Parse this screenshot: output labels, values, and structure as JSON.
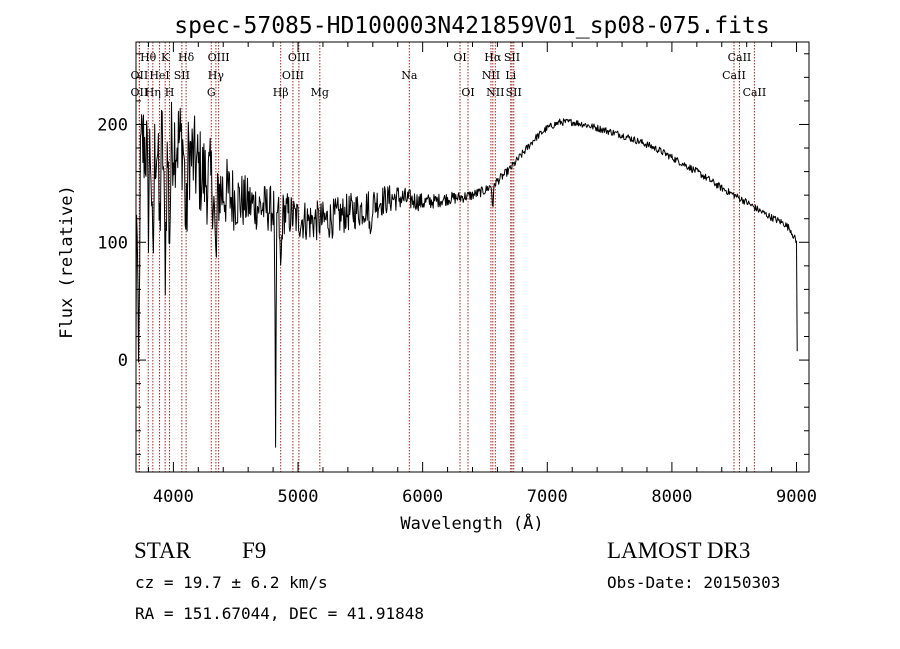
{
  "chart_data": {
    "type": "line",
    "title": "spec-57085-HD100003N421859V01_sp08-075.fits",
    "xlabel": "Wavelength (Å)",
    "ylabel": "Flux (relative)",
    "xlim": [
      3700,
      9100
    ],
    "ylim": [
      -95,
      270
    ],
    "xticks": [
      4000,
      5000,
      6000,
      7000,
      8000,
      9000
    ],
    "xtick_labels": [
      "4000",
      "5000",
      "6000",
      "7000",
      "8000",
      "9000"
    ],
    "yticks": [
      0,
      100,
      200
    ],
    "ytick_labels": [
      "0",
      "100",
      "200"
    ],
    "grid": false,
    "continuum": [
      [
        3700,
        0
      ],
      [
        3705,
        160
      ],
      [
        3750,
        182
      ],
      [
        3800,
        182
      ],
      [
        3850,
        184
      ],
      [
        3900,
        186
      ],
      [
        3950,
        188
      ],
      [
        4000,
        188
      ],
      [
        4050,
        186
      ],
      [
        4100,
        180
      ],
      [
        4150,
        172
      ],
      [
        4200,
        162
      ],
      [
        4250,
        155
      ],
      [
        4300,
        150
      ],
      [
        4350,
        146
      ],
      [
        4400,
        143
      ],
      [
        4450,
        140
      ],
      [
        4500,
        137
      ],
      [
        4600,
        133
      ],
      [
        4700,
        130
      ],
      [
        4800,
        128
      ],
      [
        4900,
        125
      ],
      [
        5000,
        120
      ],
      [
        5100,
        118
      ],
      [
        5200,
        118
      ],
      [
        5300,
        121
      ],
      [
        5400,
        125
      ],
      [
        5500,
        128
      ],
      [
        5600,
        133
      ],
      [
        5700,
        136
      ],
      [
        5800,
        138
      ],
      [
        5900,
        136
      ],
      [
        6000,
        134
      ],
      [
        6100,
        135
      ],
      [
        6200,
        137
      ],
      [
        6300,
        138
      ],
      [
        6400,
        140
      ],
      [
        6500,
        144
      ],
      [
        6600,
        152
      ],
      [
        6700,
        162
      ],
      [
        6800,
        175
      ],
      [
        6900,
        188
      ],
      [
        7000,
        197
      ],
      [
        7100,
        202
      ],
      [
        7200,
        202
      ],
      [
        7300,
        200
      ],
      [
        7400,
        197
      ],
      [
        7500,
        194
      ],
      [
        7600,
        191
      ],
      [
        7700,
        187
      ],
      [
        7800,
        183
      ],
      [
        7900,
        178
      ],
      [
        8000,
        172
      ],
      [
        8100,
        166
      ],
      [
        8200,
        160
      ],
      [
        8300,
        153
      ],
      [
        8400,
        146
      ],
      [
        8500,
        140
      ],
      [
        8600,
        134
      ],
      [
        8700,
        127
      ],
      [
        8800,
        121
      ],
      [
        8900,
        116
      ],
      [
        8950,
        111
      ],
      [
        9000,
        100
      ],
      [
        9005,
        10
      ]
    ],
    "noise": [
      [
        3700,
        45
      ],
      [
        4300,
        38
      ],
      [
        4600,
        22
      ],
      [
        5000,
        18
      ],
      [
        5500,
        16
      ],
      [
        5700,
        13
      ],
      [
        5900,
        9
      ],
      [
        6100,
        6
      ],
      [
        6500,
        4
      ],
      [
        7000,
        3
      ],
      [
        9000,
        3
      ]
    ],
    "absorption_features": [
      {
        "wavelength": 3720,
        "depth": 185,
        "width": 10
      },
      {
        "wavelength": 3798,
        "depth": 60,
        "width": 8
      },
      {
        "wavelength": 3835,
        "depth": 110,
        "width": 10
      },
      {
        "wavelength": 3889,
        "depth": 75,
        "width": 10
      },
      {
        "wavelength": 3934,
        "depth": 100,
        "width": 12
      },
      {
        "wavelength": 3969,
        "depth": 80,
        "width": 10
      },
      {
        "wavelength": 4102,
        "depth": 70,
        "width": 12
      },
      {
        "wavelength": 4341,
        "depth": 65,
        "width": 12
      },
      {
        "wavelength": 4820,
        "depth": 210,
        "width": 6
      },
      {
        "wavelength": 4861,
        "depth": 50,
        "width": 10
      },
      {
        "wavelength": 5580,
        "depth": 30,
        "width": 8
      },
      {
        "wavelength": 6563,
        "depth": 18,
        "width": 8
      }
    ],
    "series": [
      {
        "name": "flux",
        "sample_step_angstrom": 5
      }
    ],
    "line_markers": [
      {
        "wavelength": 3727,
        "label": "OII",
        "row": 2
      },
      {
        "wavelength": 3727,
        "label": "OII",
        "row": 3
      },
      {
        "wavelength": 3798,
        "label": "Hθ",
        "row": 1
      },
      {
        "wavelength": 3835,
        "label": "Hη",
        "row": 3
      },
      {
        "wavelength": 3889,
        "label": "HeI",
        "row": 2
      },
      {
        "wavelength": 3934,
        "label": "K",
        "row": 1
      },
      {
        "wavelength": 3969,
        "label": "H",
        "row": 3
      },
      {
        "wavelength": 4068,
        "label": "SII",
        "row": 2
      },
      {
        "wavelength": 4102,
        "label": "Hδ",
        "row": 1
      },
      {
        "wavelength": 4304,
        "label": "G",
        "row": 3
      },
      {
        "wavelength": 4341,
        "label": "Hγ",
        "row": 2
      },
      {
        "wavelength": 4363,
        "label": "OIII",
        "row": 1
      },
      {
        "wavelength": 4861,
        "label": "Hβ",
        "row": 3
      },
      {
        "wavelength": 4959,
        "label": "OIII",
        "row": 2
      },
      {
        "wavelength": 5007,
        "label": "OIII",
        "row": 1
      },
      {
        "wavelength": 5175,
        "label": "Mg",
        "row": 3
      },
      {
        "wavelength": 5893,
        "label": "Na",
        "row": 2
      },
      {
        "wavelength": 6300,
        "label": "OI",
        "row": 1
      },
      {
        "wavelength": 6364,
        "label": "OI",
        "row": 3
      },
      {
        "wavelength": 6548,
        "label": "NII",
        "row": 2
      },
      {
        "wavelength": 6563,
        "label": "Hα",
        "row": 1
      },
      {
        "wavelength": 6583,
        "label": "NII",
        "row": 3
      },
      {
        "wavelength": 6707,
        "label": "Li",
        "row": 2
      },
      {
        "wavelength": 6717,
        "label": "SII",
        "row": 1
      },
      {
        "wavelength": 6731,
        "label": "SII",
        "row": 3
      },
      {
        "wavelength": 8498,
        "label": "CaII",
        "row": 2
      },
      {
        "wavelength": 8542,
        "label": "CaII",
        "row": 1
      },
      {
        "wavelength": 8662,
        "label": "CaII",
        "row": 3
      }
    ],
    "colors": {
      "spectrum": "#000000",
      "markers": "#a0281e",
      "axes": "#000000",
      "background": "#ffffff"
    }
  },
  "info": {
    "object_class": "STAR",
    "subclass": "F9",
    "survey": "LAMOST DR3",
    "redshift_text": "cz = 19.7 ± 6.2 km/s",
    "obs_date": "Obs-Date: 20150303",
    "coords": "RA = 151.67044, DEC =  41.91848"
  }
}
